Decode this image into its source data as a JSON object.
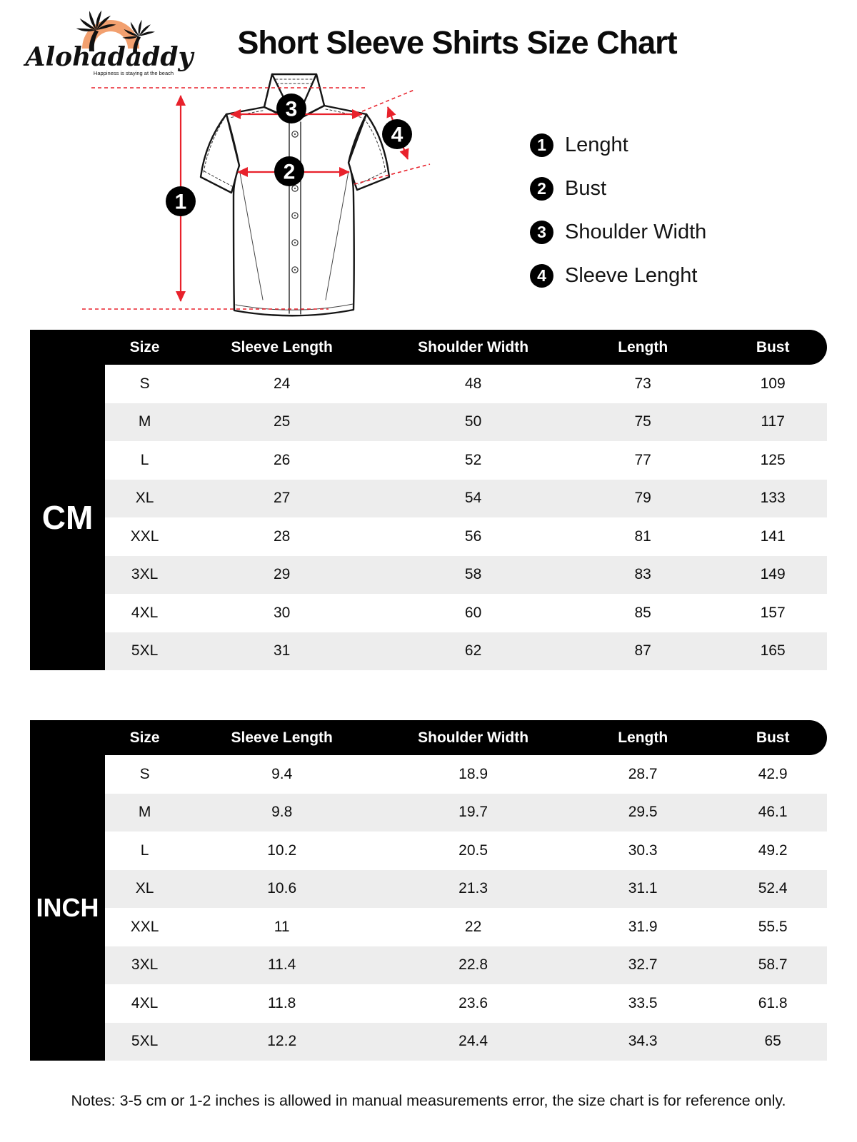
{
  "brand": {
    "name": "Alohadaddy",
    "tagline": "Happiness is staying at the beach"
  },
  "title": "Short Sleeve Shirts Size Chart",
  "legend": [
    {
      "num": "1",
      "label": "Lenght"
    },
    {
      "num": "2",
      "label": "Bust"
    },
    {
      "num": "3",
      "label": "Shoulder Width"
    },
    {
      "num": "4",
      "label": "Sleeve Lenght"
    }
  ],
  "diagram": {
    "badges": [
      "1",
      "2",
      "3",
      "4"
    ]
  },
  "tables": [
    {
      "unit": "CM",
      "headers": [
        "Size",
        "Sleeve Length",
        "Shoulder Width",
        "Length",
        "Bust"
      ],
      "rows": [
        [
          "S",
          "24",
          "48",
          "73",
          "109"
        ],
        [
          "M",
          "25",
          "50",
          "75",
          "117"
        ],
        [
          "L",
          "26",
          "52",
          "77",
          "125"
        ],
        [
          "XL",
          "27",
          "54",
          "79",
          "133"
        ],
        [
          "XXL",
          "28",
          "56",
          "81",
          "141"
        ],
        [
          "3XL",
          "29",
          "58",
          "83",
          "149"
        ],
        [
          "4XL",
          "30",
          "60",
          "85",
          "157"
        ],
        [
          "5XL",
          "31",
          "62",
          "87",
          "165"
        ]
      ]
    },
    {
      "unit": "INCH",
      "headers": [
        "Size",
        "Sleeve Length",
        "Shoulder Width",
        "Length",
        "Bust"
      ],
      "rows": [
        [
          "S",
          "9.4",
          "18.9",
          "28.7",
          "42.9"
        ],
        [
          "M",
          "9.8",
          "19.7",
          "29.5",
          "46.1"
        ],
        [
          "L",
          "10.2",
          "20.5",
          "30.3",
          "49.2"
        ],
        [
          "XL",
          "10.6",
          "21.3",
          "31.1",
          "52.4"
        ],
        [
          "XXL",
          "11",
          "22",
          "31.9",
          "55.5"
        ],
        [
          "3XL",
          "11.4",
          "22.8",
          "32.7",
          "58.7"
        ],
        [
          "4XL",
          "11.8",
          "23.6",
          "33.5",
          "61.8"
        ],
        [
          "5XL",
          "12.2",
          "24.4",
          "34.3",
          "65"
        ]
      ]
    }
  ],
  "notes": "Notes: 3-5 cm or 1-2 inches is allowed in manual measurements error, the size chart is for reference only.",
  "colors": {
    "accent_red": "#E8212B",
    "header_bg": "#000000",
    "row_alt": "#EDEDED",
    "sun_orange": "#F2A06F"
  }
}
